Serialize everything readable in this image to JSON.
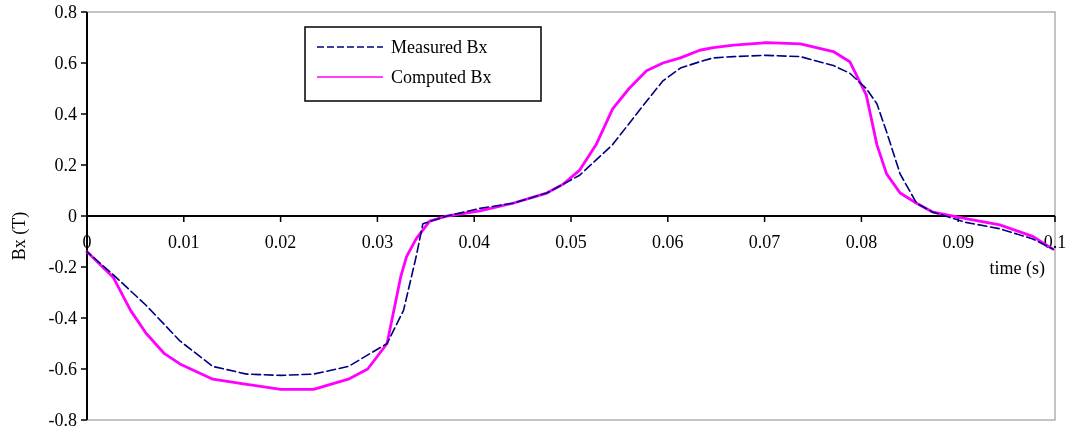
{
  "chart_data": {
    "type": "line",
    "xlabel": "time (s)",
    "ylabel": "Bx (T)",
    "xlim": [
      0,
      0.1
    ],
    "ylim": [
      -0.8,
      0.8
    ],
    "xticks": [
      0,
      0.01,
      0.02,
      0.03,
      0.04,
      0.05,
      0.06,
      0.07,
      0.08,
      0.09,
      0.1
    ],
    "yticks": [
      -0.8,
      -0.6,
      -0.4,
      -0.2,
      0,
      0.2,
      0.4,
      0.6,
      0.8
    ],
    "grid": false,
    "legend": "top left",
    "marker": "none",
    "series": [
      {
        "name": "Measured Bx",
        "color": "#000080",
        "line_style": "dashed",
        "x": [
          0,
          0.0027,
          0.0061,
          0.0096,
          0.013,
          0.0165,
          0.02,
          0.0234,
          0.027,
          0.031,
          0.0327,
          0.034,
          0.0347,
          0.0372,
          0.0406,
          0.044,
          0.0475,
          0.0492,
          0.0509,
          0.0543,
          0.0578,
          0.0595,
          0.0613,
          0.0633,
          0.0647,
          0.0668,
          0.0702,
          0.0737,
          0.0771,
          0.0788,
          0.0805,
          0.0816,
          0.0826,
          0.084,
          0.0857,
          0.0874,
          0.0908,
          0.0943,
          0.0977,
          0.0998
        ],
        "values": [
          -0.14,
          -0.23,
          -0.35,
          -0.49,
          -0.59,
          -0.62,
          -0.625,
          -0.62,
          -0.59,
          -0.5,
          -0.37,
          -0.16,
          -0.03,
          0,
          0.03,
          0.05,
          0.09,
          0.125,
          0.16,
          0.28,
          0.45,
          0.53,
          0.58,
          0.605,
          0.62,
          0.625,
          0.63,
          0.625,
          0.59,
          0.56,
          0.5,
          0.44,
          0.33,
          0.165,
          0.05,
          0.015,
          -0.025,
          -0.05,
          -0.09,
          -0.13
        ]
      },
      {
        "name": "Computed Bx",
        "color": "#ff00ff",
        "line_style": "solid",
        "x": [
          0,
          0.0027,
          0.0045,
          0.0061,
          0.008,
          0.0096,
          0.013,
          0.0165,
          0.02,
          0.0234,
          0.027,
          0.029,
          0.031,
          0.0324,
          0.033,
          0.034,
          0.0354,
          0.0372,
          0.0406,
          0.044,
          0.0475,
          0.0492,
          0.0509,
          0.0526,
          0.0543,
          0.056,
          0.0578,
          0.0595,
          0.0613,
          0.0633,
          0.0647,
          0.0668,
          0.0702,
          0.0737,
          0.0771,
          0.0788,
          0.0805,
          0.0816,
          0.0826,
          0.084,
          0.0857,
          0.0874,
          0.0908,
          0.0943,
          0.0977,
          0.0998
        ],
        "values": [
          -0.14,
          -0.24,
          -0.37,
          -0.46,
          -0.54,
          -0.58,
          -0.64,
          -0.66,
          -0.68,
          -0.68,
          -0.64,
          -0.6,
          -0.5,
          -0.24,
          -0.16,
          -0.09,
          -0.02,
          0,
          0.02,
          0.05,
          0.09,
          0.125,
          0.18,
          0.28,
          0.42,
          0.5,
          0.57,
          0.6,
          0.62,
          0.65,
          0.66,
          0.67,
          0.68,
          0.675,
          0.645,
          0.605,
          0.475,
          0.28,
          0.165,
          0.09,
          0.05,
          0.015,
          -0.01,
          -0.035,
          -0.08,
          -0.13
        ]
      }
    ]
  }
}
